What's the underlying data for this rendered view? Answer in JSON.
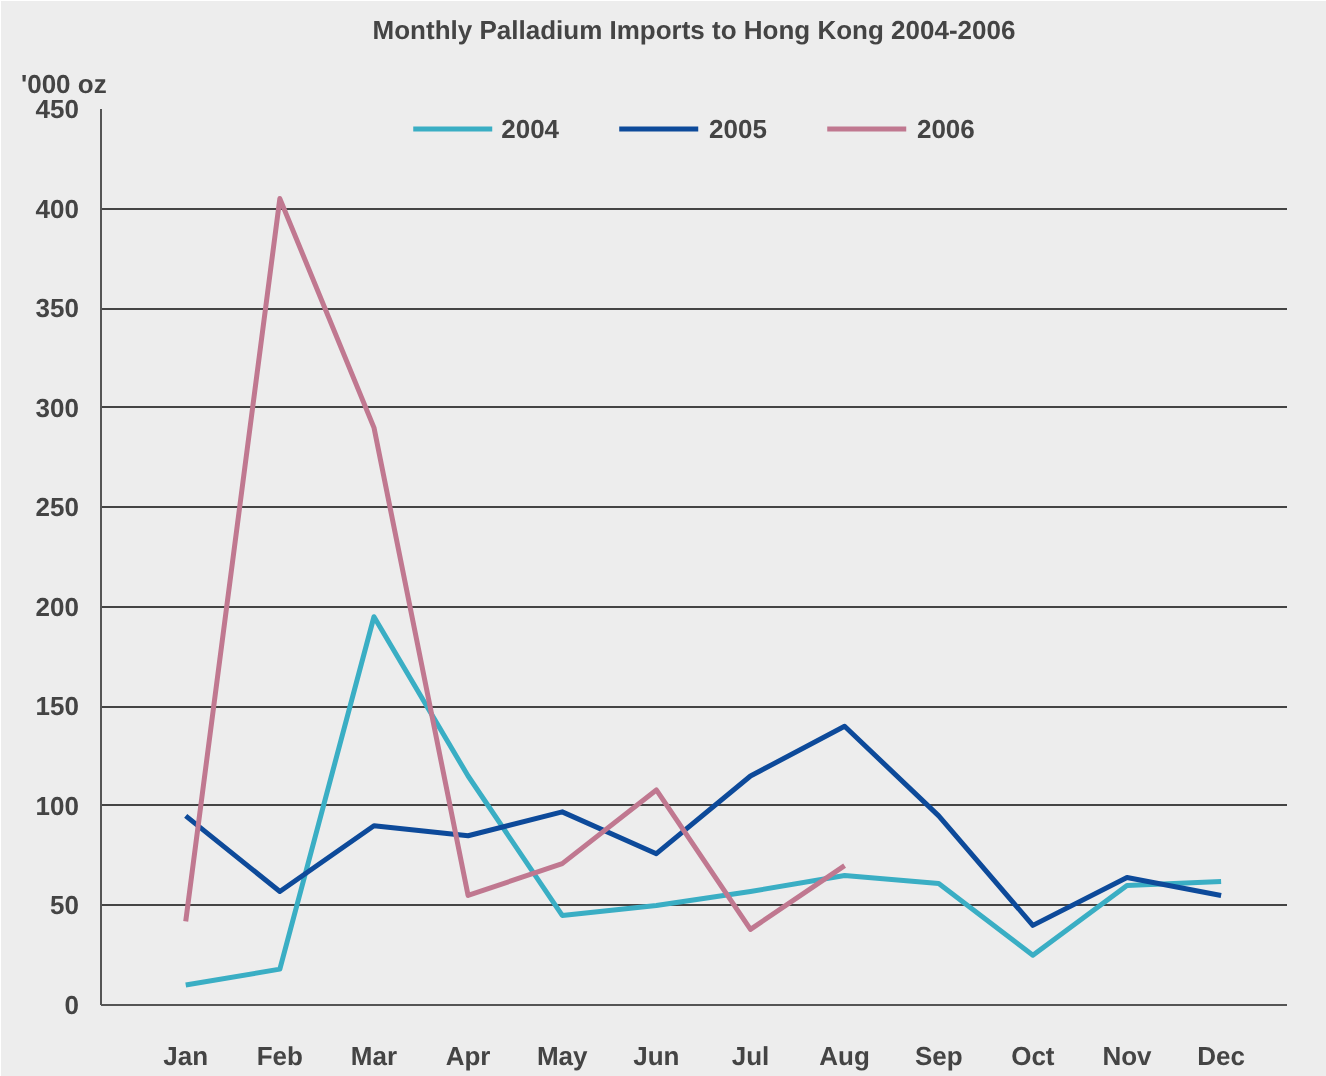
{
  "chart_data": {
    "type": "line",
    "title": "Monthly Palladium Imports to Hong Kong 2004-2006",
    "ylabel": "'000 oz",
    "categories": [
      "Jan",
      "Feb",
      "Mar",
      "Apr",
      "May",
      "Jun",
      "Jul",
      "Aug",
      "Sep",
      "Oct",
      "Nov",
      "Dec"
    ],
    "series": [
      {
        "name": "2004",
        "color": "#3aaec4",
        "values": [
          10,
          18,
          195,
          115,
          45,
          50,
          57,
          65,
          61,
          25,
          60,
          62
        ]
      },
      {
        "name": "2005",
        "color": "#0d4a9a",
        "values": [
          95,
          57,
          90,
          85,
          97,
          76,
          115,
          140,
          95,
          40,
          64,
          55
        ]
      },
      {
        "name": "2006",
        "color": "#c07890",
        "values": [
          42,
          405,
          290,
          55,
          71,
          108,
          38,
          70,
          null,
          null,
          null,
          null
        ]
      }
    ],
    "ylim": [
      0,
      450
    ],
    "yticks": [
      0,
      50,
      100,
      150,
      200,
      250,
      300,
      350,
      400,
      450
    ],
    "grid": "y",
    "legend": "top",
    "marker": "none",
    "line_style": "solid"
  }
}
